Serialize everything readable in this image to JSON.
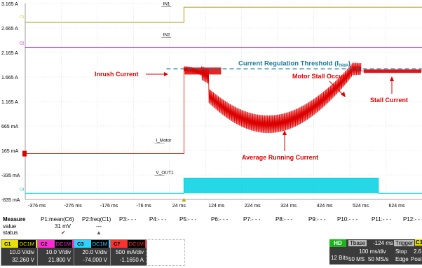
{
  "chart_data": {
    "type": "line",
    "x_ticks": [
      "-376 ms",
      "-276 ms",
      "-176 ms",
      "-76 ms",
      "24 ms",
      "124 ms",
      "224 ms",
      "324 ms",
      "424 ms",
      "524 ms",
      "624 ms"
    ],
    "y_ticks": [
      "3.165 A",
      "2.665 A",
      "2.165 A",
      "1.665 A",
      "1.165 A",
      "665 mA",
      "165 mA",
      "-335 mA",
      "-835 mA"
    ],
    "series": [
      {
        "name": "IN1",
        "color": "#a8a000",
        "shape": "step",
        "low_level": 2.78,
        "high_level": 3.09,
        "step_time_ms": 24
      },
      {
        "name": "IN2",
        "color": "#c000c0",
        "shape": "flat",
        "level": 2.27
      },
      {
        "name": "I_Motor",
        "color": "#dd0000",
        "shape": "inrush-ripple-stall",
        "idle_level": 0.1,
        "step_time_ms": 24,
        "peak_level": 1.83,
        "running_level": 0.7,
        "stall_time_ms": 470,
        "stall_level": 1.79
      },
      {
        "name": "V_OUT1",
        "color": "#00d0e0",
        "shape": "step",
        "low_level": -0.71,
        "high_level": -0.4,
        "step_time_ms": 24,
        "fall_time_ms": 514
      }
    ],
    "threshold": {
      "level": 1.83,
      "label": "Current Regulation Threshold (I",
      "label_sub": "TRIP",
      "label_end": ")"
    },
    "annotations": {
      "inrush": "Inrush Current",
      "stall_occurs": "Motor Stall Occurs",
      "stall_current": "Stall Current",
      "average": "Average Running Current"
    },
    "channel_markers": [
      "C1",
      "C2",
      "C4"
    ],
    "trigger_marker": "T"
  },
  "measure": {
    "title": "Measure",
    "cols": [
      "P1:mean(C6)",
      "P2:freq(C1)",
      "P3:- - -",
      "P4:- - -",
      "P5:- - -",
      "P6:- - -",
      "P7:- - -",
      "P8:- - -",
      "P9:- - -",
      "P10:- - -",
      "P11:- - -",
      "P12:- - -"
    ],
    "value_label": "value",
    "status_label": "status",
    "p1_value": "31 mV",
    "p2_value": "---",
    "p1_status": "✔",
    "p2_status": "▲"
  },
  "channels": [
    {
      "id": "C1",
      "coupling": "DC1M",
      "vdiv": "10.0 V/div",
      "offset": "32.260 V",
      "color": "#e8e000"
    },
    {
      "id": "C2",
      "coupling": "DC1M",
      "vdiv": "10.0 V/div",
      "offset": "21.800 V",
      "color": "#ff2ad4"
    },
    {
      "id": "C3",
      "coupling": "DC1M",
      "vdiv": "20.0 V/div",
      "offset": "-74.000 V",
      "color": "#2ad4ff"
    },
    {
      "id": "C7",
      "coupling": "DC1M",
      "vdiv": "500 mA/div",
      "offset": "-1.1650 A",
      "color": "#ff3030"
    }
  ],
  "acq": {
    "hd": "HD",
    "bits": "12 Bits",
    "tbase_label": "Tbase",
    "tbase": "-124 ms",
    "tdiv": "100 ms/div",
    "samples": "50 MS",
    "rate": "50 MS/s",
    "trigger_label": "Trigger",
    "trig_ch": "C1",
    "trig_cpl": "DC",
    "mode": "Stop",
    "level": "2.6 V",
    "type": "Edge",
    "slope": "Positive"
  }
}
